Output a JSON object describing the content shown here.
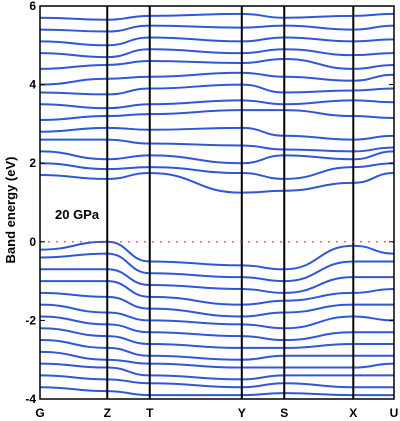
{
  "chart_data": {
    "type": "line",
    "title": "",
    "xlabel": "",
    "ylabel": "Band energy (eV)",
    "annotation": "20 GPa",
    "ylim": [
      -4,
      6
    ],
    "y_ticks": [
      -4,
      -2,
      0,
      2,
      4,
      6
    ],
    "k_points": [
      "G",
      "Z",
      "T",
      "Y",
      "S",
      "X",
      "U"
    ],
    "k_positions": [
      0,
      0.19,
      0.31,
      0.57,
      0.69,
      0.885,
      1.0
    ],
    "fermi_level": 0,
    "fermi_color": "#d9402a",
    "band_color": "#2f57d6",
    "series": [
      {
        "x": [
          0,
          0.19,
          0.31,
          0.57,
          0.69,
          0.885,
          1.0
        ],
        "values": [
          1.7,
          1.6,
          1.75,
          1.25,
          1.3,
          1.5,
          1.75
        ]
      },
      {
        "x": [
          0,
          0.19,
          0.31,
          0.57,
          0.69,
          0.885,
          1.0
        ],
        "values": [
          2.0,
          1.85,
          1.9,
          1.75,
          1.6,
          1.9,
          2.0
        ]
      },
      {
        "x": [
          0,
          0.19,
          0.31,
          0.57,
          0.69,
          0.885,
          1.0
        ],
        "values": [
          2.3,
          2.1,
          2.2,
          2.0,
          2.2,
          2.1,
          2.3
        ]
      },
      {
        "x": [
          0,
          0.19,
          0.31,
          0.57,
          0.69,
          0.885,
          1.0
        ],
        "values": [
          2.6,
          2.6,
          2.5,
          2.45,
          2.35,
          2.3,
          2.4
        ]
      },
      {
        "x": [
          0,
          0.19,
          0.31,
          0.57,
          0.69,
          0.885,
          1.0
        ],
        "values": [
          2.8,
          2.9,
          2.85,
          2.9,
          2.7,
          2.6,
          2.7
        ]
      },
      {
        "x": [
          0,
          0.19,
          0.31,
          0.57,
          0.69,
          0.885,
          1.0
        ],
        "values": [
          3.1,
          3.2,
          3.25,
          3.35,
          3.35,
          3.2,
          3.15
        ]
      },
      {
        "x": [
          0,
          0.19,
          0.31,
          0.57,
          0.69,
          0.885,
          1.0
        ],
        "values": [
          3.5,
          3.4,
          3.5,
          3.6,
          3.5,
          3.6,
          3.55
        ]
      },
      {
        "x": [
          0,
          0.19,
          0.31,
          0.57,
          0.69,
          0.885,
          1.0
        ],
        "values": [
          3.8,
          3.75,
          3.9,
          4.0,
          3.8,
          3.85,
          3.9
        ]
      },
      {
        "x": [
          0,
          0.19,
          0.31,
          0.57,
          0.69,
          0.885,
          1.0
        ],
        "values": [
          4.0,
          4.15,
          4.2,
          4.3,
          4.2,
          4.1,
          4.25
        ]
      },
      {
        "x": [
          0,
          0.19,
          0.31,
          0.57,
          0.69,
          0.885,
          1.0
        ],
        "values": [
          4.4,
          4.5,
          4.6,
          4.55,
          4.65,
          4.4,
          4.5
        ]
      },
      {
        "x": [
          0,
          0.19,
          0.31,
          0.57,
          0.69,
          0.885,
          1.0
        ],
        "values": [
          4.8,
          4.7,
          4.9,
          4.8,
          4.9,
          4.75,
          4.8
        ]
      },
      {
        "x": [
          0,
          0.19,
          0.31,
          0.57,
          0.69,
          0.885,
          1.0
        ],
        "values": [
          5.1,
          5.0,
          5.2,
          5.1,
          5.2,
          5.1,
          5.15
        ]
      },
      {
        "x": [
          0,
          0.19,
          0.31,
          0.57,
          0.69,
          0.885,
          1.0
        ],
        "values": [
          5.4,
          5.35,
          5.5,
          5.45,
          5.5,
          5.4,
          5.5
        ]
      },
      {
        "x": [
          0,
          0.19,
          0.31,
          0.57,
          0.69,
          0.885,
          1.0
        ],
        "values": [
          5.7,
          5.65,
          5.75,
          5.8,
          5.7,
          5.75,
          5.8
        ]
      },
      {
        "x": [
          0,
          0.19,
          0.31,
          0.57,
          0.69,
          0.885,
          1.0
        ],
        "values": [
          -0.2,
          0.0,
          -0.5,
          -0.6,
          -0.7,
          -0.1,
          -0.3
        ]
      },
      {
        "x": [
          0,
          0.19,
          0.31,
          0.57,
          0.69,
          0.885,
          1.0
        ],
        "values": [
          -0.4,
          -0.3,
          -0.8,
          -0.9,
          -1.0,
          -0.5,
          -0.5
        ]
      },
      {
        "x": [
          0,
          0.19,
          0.31,
          0.57,
          0.69,
          0.885,
          1.0
        ],
        "values": [
          -0.7,
          -0.7,
          -1.1,
          -1.2,
          -1.3,
          -0.9,
          -0.9
        ]
      },
      {
        "x": [
          0,
          0.19,
          0.31,
          0.57,
          0.69,
          0.885,
          1.0
        ],
        "values": [
          -1.0,
          -1.0,
          -1.4,
          -1.6,
          -1.5,
          -1.3,
          -1.2
        ]
      },
      {
        "x": [
          0,
          0.19,
          0.31,
          0.57,
          0.69,
          0.885,
          1.0
        ],
        "values": [
          -1.3,
          -1.4,
          -1.7,
          -1.9,
          -1.8,
          -1.6,
          -1.6
        ]
      },
      {
        "x": [
          0,
          0.19,
          0.31,
          0.57,
          0.69,
          0.885,
          1.0
        ],
        "values": [
          -1.6,
          -1.8,
          -2.0,
          -2.1,
          -2.2,
          -1.9,
          -2.0
        ]
      },
      {
        "x": [
          0,
          0.19,
          0.31,
          0.57,
          0.69,
          0.885,
          1.0
        ],
        "values": [
          -1.9,
          -2.1,
          -2.3,
          -2.4,
          -2.5,
          -2.3,
          -2.3
        ]
      },
      {
        "x": [
          0,
          0.19,
          0.31,
          0.57,
          0.69,
          0.885,
          1.0
        ],
        "values": [
          -2.2,
          -2.4,
          -2.6,
          -2.7,
          -2.7,
          -2.6,
          -2.6
        ]
      },
      {
        "x": [
          0,
          0.19,
          0.31,
          0.57,
          0.69,
          0.885,
          1.0
        ],
        "values": [
          -2.5,
          -2.7,
          -2.9,
          -3.0,
          -2.9,
          -2.9,
          -2.9
        ]
      },
      {
        "x": [
          0,
          0.19,
          0.31,
          0.57,
          0.69,
          0.885,
          1.0
        ],
        "values": [
          -2.8,
          -3.0,
          -3.1,
          -3.2,
          -3.2,
          -3.2,
          -3.1
        ]
      },
      {
        "x": [
          0,
          0.19,
          0.31,
          0.57,
          0.69,
          0.885,
          1.0
        ],
        "values": [
          -3.1,
          -3.2,
          -3.4,
          -3.5,
          -3.4,
          -3.4,
          -3.4
        ]
      },
      {
        "x": [
          0,
          0.19,
          0.31,
          0.57,
          0.69,
          0.885,
          1.0
        ],
        "values": [
          -3.4,
          -3.5,
          -3.6,
          -3.7,
          -3.6,
          -3.7,
          -3.7
        ]
      },
      {
        "x": [
          0,
          0.19,
          0.31,
          0.57,
          0.69,
          0.885,
          1.0
        ],
        "values": [
          -3.7,
          -3.8,
          -3.9,
          -3.9,
          -3.85,
          -3.9,
          -3.9
        ]
      }
    ]
  }
}
